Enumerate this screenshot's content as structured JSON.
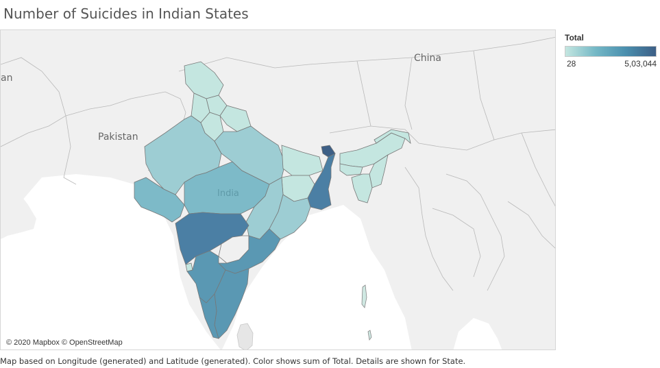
{
  "title": "Number of Suicides in Indian States",
  "legend": {
    "title": "Total",
    "min_label": "28",
    "max_label": "5,03,044",
    "colors": [
      "#c4e6e0",
      "#74b8c6",
      "#4a8fae",
      "#3d5f86"
    ]
  },
  "map": {
    "labels": {
      "china": "China",
      "pakistan": "Pakistan",
      "india": "India",
      "cut_left": "an"
    },
    "attribution": "© 2020 Mapbox © OpenStreetMap"
  },
  "colors": {
    "land": "#f0f0f0",
    "sea": "#ffffff",
    "light": "#c4e6e0",
    "medium_light": "#9dcdd3",
    "medium": "#7dbac8",
    "medium_dark": "#5a98b3",
    "dark": "#4b7fa4",
    "darkest": "#3d5f86"
  },
  "footer": "Map based on Longitude (generated) and Latitude (generated).  Color shows sum of Total.  Details are shown for State."
}
